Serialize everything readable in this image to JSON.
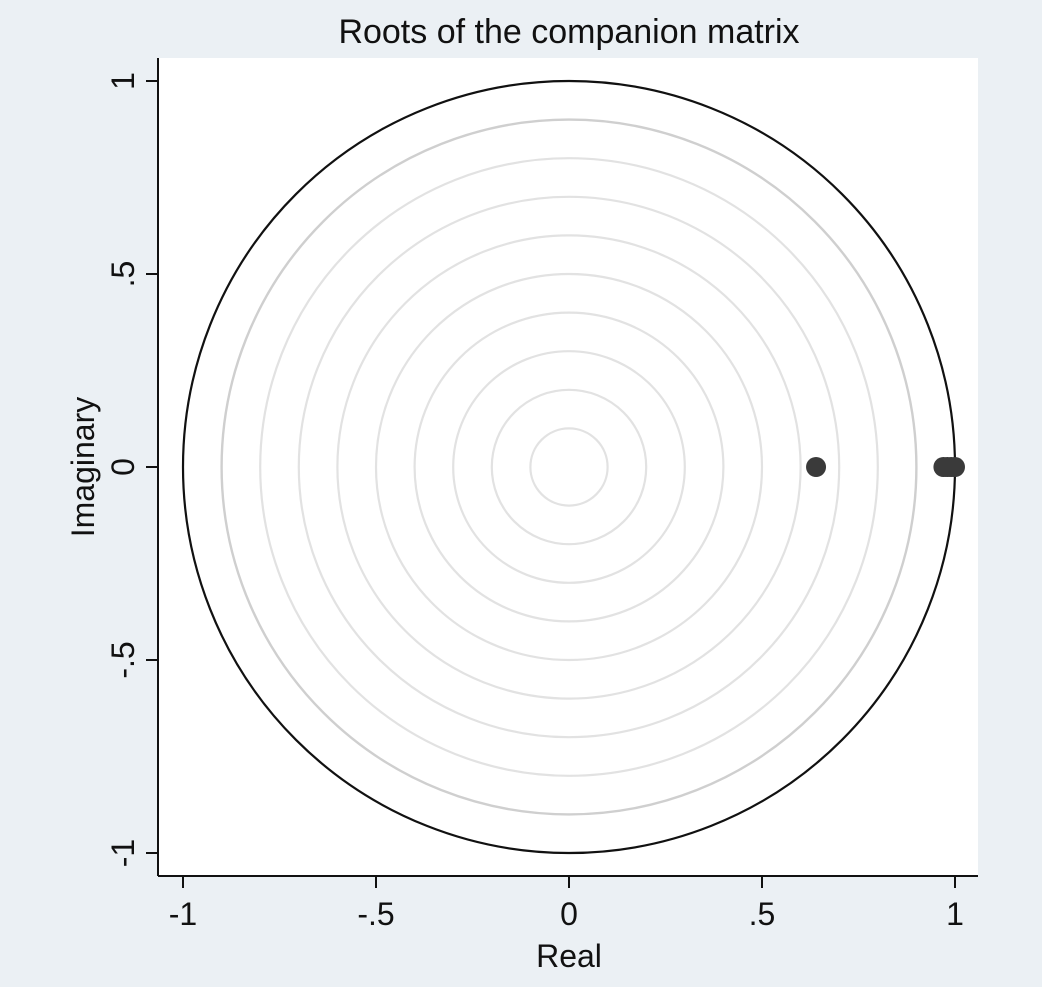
{
  "chart_data": {
    "type": "scatter",
    "title": "Roots of the companion matrix",
    "xlabel": "Real",
    "ylabel": "Imaginary",
    "xlim": [
      -1.06,
      1.06
    ],
    "ylim": [
      -1.06,
      1.06
    ],
    "x_ticks": [
      {
        "value": -1,
        "label": "-1"
      },
      {
        "value": -0.5,
        "label": "-.5"
      },
      {
        "value": 0,
        "label": "0"
      },
      {
        "value": 0.5,
        "label": ".5"
      },
      {
        "value": 1,
        "label": "1"
      }
    ],
    "y_ticks": [
      {
        "value": 1,
        "label": "1"
      },
      {
        "value": 0.5,
        "label": ".5"
      },
      {
        "value": 0,
        "label": "0"
      },
      {
        "value": -0.5,
        "label": "-.5"
      },
      {
        "value": -1,
        "label": "-1"
      }
    ],
    "unit_circle_radius": 1,
    "guide_circle_radii": [
      0.1,
      0.2,
      0.3,
      0.4,
      0.5,
      0.6,
      0.7,
      0.8,
      0.9
    ],
    "guide_circle_strong_radius": 0.9,
    "grid": false,
    "points": [
      {
        "x": 0.64,
        "y": 0
      },
      {
        "x": 0.97,
        "y": 0
      },
      {
        "x": 0.98,
        "y": 0
      },
      {
        "x": 0.99,
        "y": 0
      },
      {
        "x": 1.0,
        "y": 0
      }
    ],
    "colors": {
      "background": "#ebf0f4",
      "plot_region": "#ffffff",
      "unit_circle": "#111111",
      "guide_circle": "#e2e2e2",
      "guide_circle_strong": "#cfcfcf",
      "marker": "#3a3a3a",
      "axis": "#111111"
    }
  }
}
